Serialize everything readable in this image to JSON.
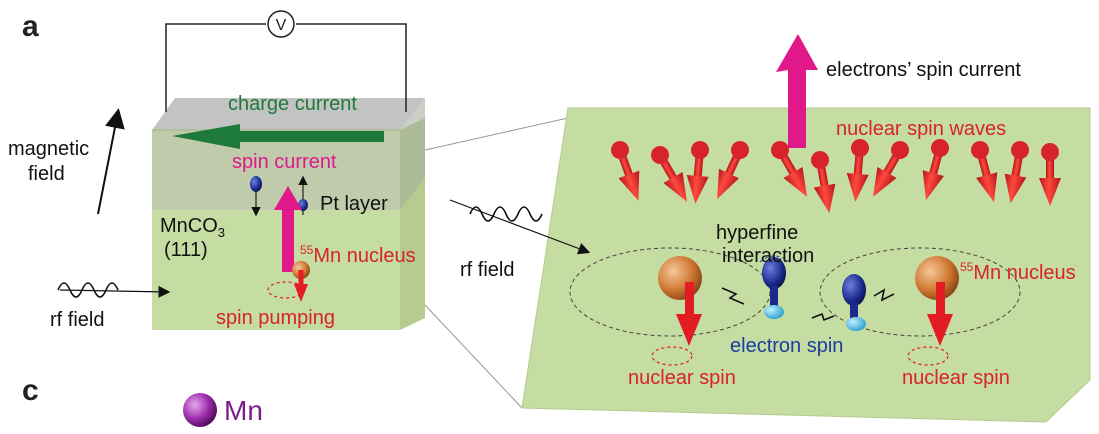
{
  "panels": {
    "a": "a",
    "c": "c"
  },
  "left": {
    "voltmeter": "V",
    "charge_current": "charge current",
    "spin_current": "spin current",
    "pt_layer": "Pt layer",
    "magnetic_field_1": "magnetic",
    "magnetic_field_2": "field",
    "crystal_1": "MnCO",
    "crystal_sub": "3",
    "crystal_2": "(111)",
    "nucleus_sup": "55",
    "nucleus": "Mn nucleus",
    "spin_pumping": "spin pumping",
    "rf_field": "rf field"
  },
  "right": {
    "electrons_spin_current": "electrons’ spin current",
    "nuclear_spin_waves": "nuclear spin waves",
    "hyperfine_1": "hyperfine",
    "hyperfine_2": "interaction",
    "rf_field": "rf field",
    "nucleus_sup": "55",
    "nucleus": "Mn nucleus",
    "electron_spin": "electron spin",
    "nuclear_spin_left": "nuclear spin",
    "nuclear_spin_right": "nuclear spin"
  },
  "legend_c": {
    "element": "Mn"
  },
  "colors": {
    "slab": "#c5dca2",
    "pt_layer": "#c8c8c8",
    "spin_arrow": "#e31b23",
    "magenta": "#e0188a",
    "green": "#1e7a3a",
    "electron_blue": "#1a2f8c"
  }
}
